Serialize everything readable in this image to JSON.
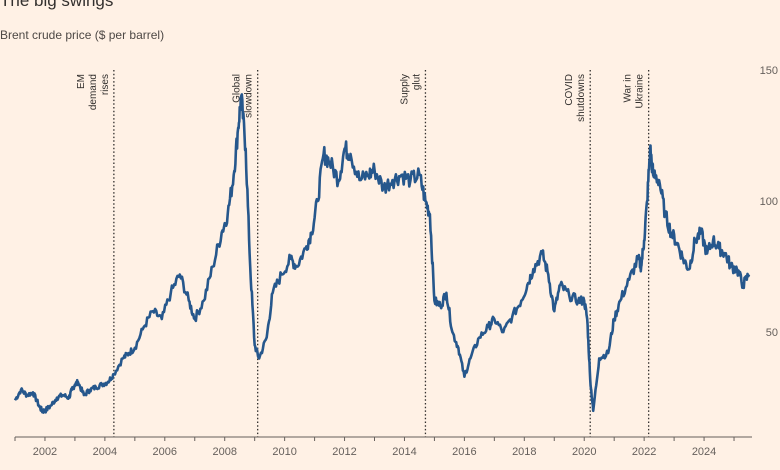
{
  "chart_data": {
    "type": "line",
    "title": "The big swings",
    "subtitle": "Brent crude price ($ per barrel)",
    "xlim": [
      2001.0,
      2025.6
    ],
    "ylim": [
      10,
      150
    ],
    "x_ticks": [
      "2002",
      "2004",
      "2006",
      "2008",
      "2010",
      "2012",
      "2014",
      "2016",
      "2018",
      "2020",
      "2022",
      "2024"
    ],
    "y_ticks": [
      "50",
      "100",
      "150"
    ],
    "grid": false,
    "series_color": "#26578c",
    "events": [
      {
        "x": 2004.3,
        "lines": [
          "EM",
          "demand",
          "rises"
        ]
      },
      {
        "x": 2009.1,
        "lines": [
          "Global",
          "slowdown"
        ]
      },
      {
        "x": 2014.7,
        "lines": [
          "Supply",
          "glut"
        ]
      },
      {
        "x": 2020.2,
        "lines": [
          "COVID",
          "shutdowns"
        ]
      },
      {
        "x": 2022.15,
        "lines": [
          "War in",
          "Ukraine"
        ]
      }
    ],
    "series": [
      {
        "x": [
          2001.0,
          2001.2,
          2001.4,
          2001.6,
          2001.8,
          2001.9,
          2002.0,
          2002.2,
          2002.4,
          2002.6,
          2002.8,
          2002.9,
          2003.0,
          2003.1,
          2003.3,
          2003.5,
          2003.7,
          2003.9,
          2004.1,
          2004.3,
          2004.6,
          2004.8,
          2005.0,
          2005.3,
          2005.6,
          2005.9,
          2006.2,
          2006.5,
          2006.8,
          2007.0,
          2007.3,
          2007.6,
          2007.9,
          2008.1,
          2008.3,
          2008.45,
          2008.55,
          2008.7,
          2008.85,
          2009.0,
          2009.15,
          2009.4,
          2009.6,
          2009.9,
          2010.2,
          2010.4,
          2010.7,
          2010.9,
          2011.1,
          2011.3,
          2011.5,
          2011.8,
          2012.0,
          2012.2,
          2012.5,
          2012.8,
          2013.0,
          2013.3,
          2013.6,
          2013.9,
          2014.2,
          2014.5,
          2014.7,
          2014.85,
          2015.0,
          2015.2,
          2015.4,
          2015.6,
          2015.8,
          2016.0,
          2016.2,
          2016.5,
          2016.8,
          2017.0,
          2017.3,
          2017.6,
          2017.9,
          2018.1,
          2018.3,
          2018.6,
          2018.8,
          2019.0,
          2019.2,
          2019.5,
          2019.8,
          2020.0,
          2020.1,
          2020.2,
          2020.3,
          2020.5,
          2020.8,
          2021.0,
          2021.2,
          2021.5,
          2021.8,
          2021.9,
          2022.0,
          2022.1,
          2022.2,
          2022.3,
          2022.5,
          2022.7,
          2022.9,
          2023.1,
          2023.3,
          2023.5,
          2023.7,
          2023.9,
          2024.1,
          2024.3,
          2024.5,
          2024.7,
          2024.9,
          2025.1,
          2025.3,
          2025.5
        ],
        "y": [
          24,
          28,
          26,
          27,
          22,
          20,
          20,
          22,
          25,
          26,
          25,
          28,
          30,
          31,
          26,
          28,
          29,
          30,
          31,
          34,
          40,
          42,
          44,
          52,
          58,
          55,
          65,
          72,
          62,
          55,
          62,
          75,
          88,
          95,
          110,
          128,
          140,
          120,
          75,
          45,
          40,
          48,
          65,
          72,
          78,
          75,
          82,
          88,
          100,
          118,
          115,
          108,
          120,
          118,
          108,
          110,
          112,
          105,
          108,
          110,
          108,
          110,
          100,
          95,
          62,
          60,
          65,
          50,
          44,
          33,
          40,
          48,
          52,
          55,
          50,
          56,
          62,
          68,
          74,
          80,
          72,
          58,
          68,
          64,
          62,
          62,
          55,
          32,
          20,
          40,
          42,
          55,
          62,
          70,
          78,
          75,
          85,
          100,
          120,
          110,
          108,
          95,
          88,
          84,
          78,
          74,
          85,
          88,
          80,
          85,
          82,
          80,
          75,
          74,
          68,
          72
        ]
      }
    ]
  }
}
